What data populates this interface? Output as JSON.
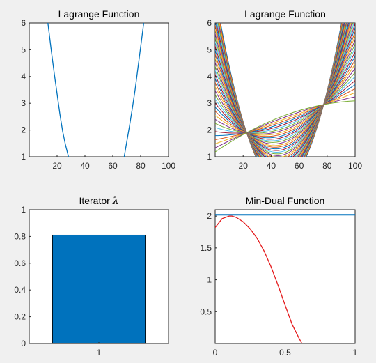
{
  "chart_data": [
    {
      "id": "ax1",
      "type": "line",
      "title": "Lagrange Function",
      "xlim": [
        0,
        100
      ],
      "ylim": [
        1,
        6
      ],
      "xticks": [
        20,
        40,
        60,
        80,
        100
      ],
      "yticks": [
        1,
        2,
        3,
        4,
        5,
        6
      ],
      "grid": false,
      "series": [
        {
          "color": "#0072bd",
          "x": [
            13.4,
            16,
            18,
            20,
            22,
            24,
            26,
            28.2
          ],
          "y": [
            6.0,
            4.9,
            4.1,
            3.35,
            2.6,
            1.95,
            1.45,
            1.0
          ]
        },
        {
          "color": "#0072bd",
          "x": [
            68.2,
            70,
            72,
            74,
            76,
            78,
            80,
            82.2
          ],
          "y": [
            1.0,
            1.55,
            2.15,
            2.8,
            3.5,
            4.3,
            5.1,
            6.0
          ]
        }
      ]
    },
    {
      "id": "ax2",
      "type": "line",
      "title": "Lagrange Function",
      "xlim": [
        0,
        100
      ],
      "ylim": [
        1,
        6
      ],
      "xticks": [
        20,
        40,
        60,
        80,
        100
      ],
      "yticks": [
        1,
        2,
        3,
        4,
        5,
        6
      ],
      "grid": false,
      "curve_family": {
        "count": 40,
        "parameter_range": [
          -1,
          1
        ],
        "anchor_points": [
          {
            "x": 22.5,
            "y": 1.9
          },
          {
            "x": 77.5,
            "y": 2.95
          }
        ],
        "peak_at_x": 52,
        "peak_range": [
          1.0,
          4.05
        ],
        "colors": [
          "#0072bd",
          "#d95319",
          "#edb120",
          "#7e2f8e",
          "#77ac30",
          "#4dbeee",
          "#a2142f"
        ]
      }
    },
    {
      "id": "ax3",
      "type": "bar",
      "title": "Iterator λ",
      "title_prefix": "Iterator",
      "title_symbol": "λ",
      "categories": [
        "1"
      ],
      "values": [
        0.81
      ],
      "xlim": [
        0.4,
        1.6
      ],
      "ylim": [
        0,
        1
      ],
      "yticks": [
        0,
        0.2,
        0.4,
        0.6,
        0.8,
        1
      ],
      "ytick_labels": [
        "0",
        "0.2",
        "0.4",
        "0.6",
        "0.8",
        "1"
      ],
      "bar_color": "#0072bd",
      "grid": false
    },
    {
      "id": "ax4",
      "type": "line",
      "title": "Min-Dual Function",
      "xlim": [
        0,
        1
      ],
      "ylim": [
        0,
        2.1
      ],
      "xticks": [
        0,
        0.5,
        1
      ],
      "xtick_labels": [
        "0",
        "0.5",
        "1"
      ],
      "yticks": [
        0.5,
        1,
        1.5,
        2
      ],
      "ytick_labels": [
        "0.5",
        "1",
        "1.5",
        "2"
      ],
      "grid": false,
      "series": [
        {
          "color": "#0072bd",
          "x": [
            0,
            1
          ],
          "y": [
            2.02,
            2.02
          ]
        },
        {
          "color": "#e41a1c",
          "x": [
            0,
            0.05,
            0.1,
            0.12,
            0.15,
            0.2,
            0.25,
            0.3,
            0.35,
            0.4,
            0.45,
            0.5,
            0.55,
            0.6,
            0.62
          ],
          "y": [
            1.82,
            1.96,
            2.0,
            2.0,
            1.98,
            1.91,
            1.8,
            1.65,
            1.45,
            1.2,
            0.91,
            0.6,
            0.3,
            0.08,
            0.0
          ]
        }
      ]
    }
  ]
}
